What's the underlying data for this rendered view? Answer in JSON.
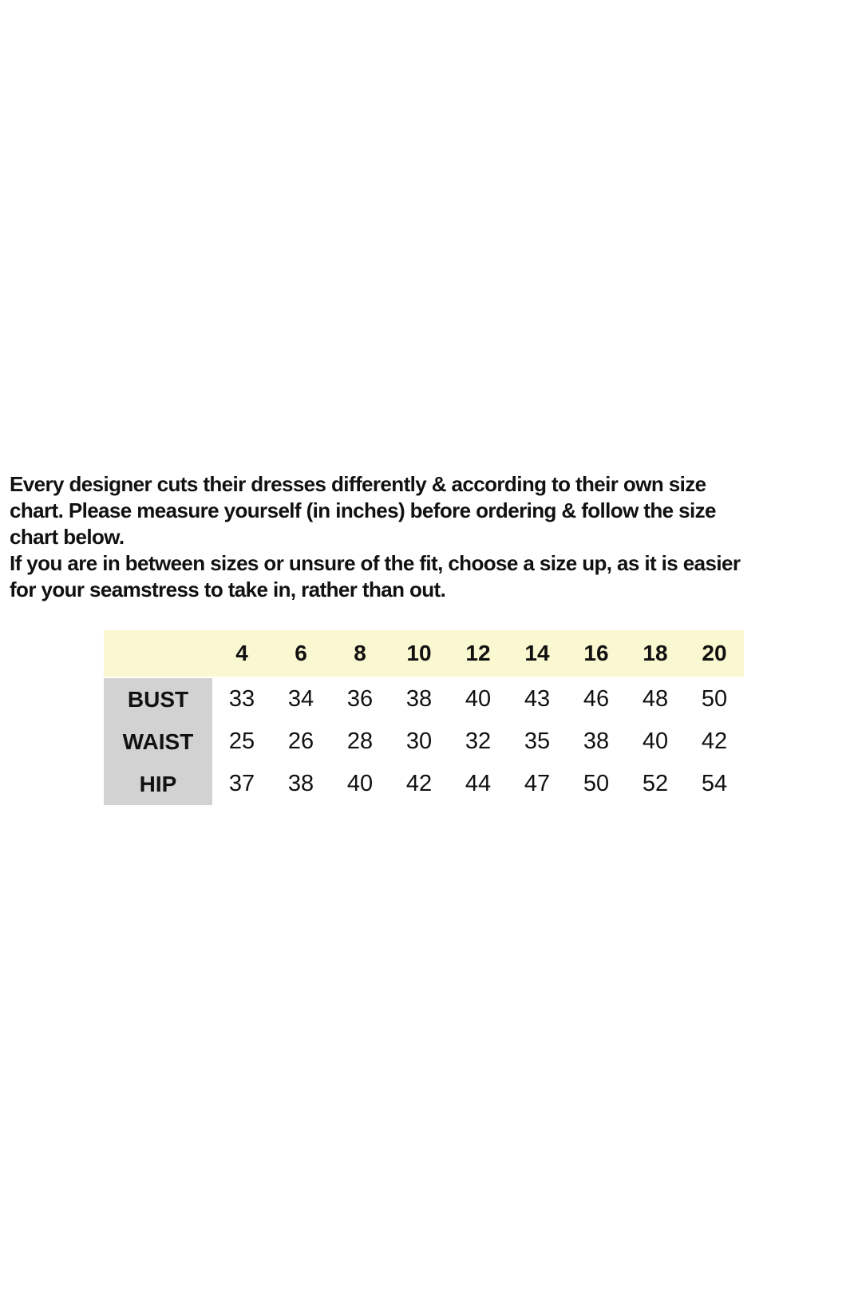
{
  "page": {
    "background": "#ffffff",
    "text_color": "#111111"
  },
  "intro": {
    "lines": [
      "Every designer cuts their dresses differently & according to their own size",
      "chart. Please measure yourself (in inches) before ordering & follow the size",
      "chart below.",
      "If you are in between sizes or unsure of the fit, choose a size up, as it is easier",
      "for your seamstress to take in, rather than out."
    ]
  },
  "size_chart": {
    "colors": {
      "header_bg": "#faf8d0",
      "label_bg": "#d2d2d2"
    },
    "sizes": [
      "4",
      "6",
      "8",
      "10",
      "12",
      "14",
      "16",
      "18",
      "20"
    ],
    "rows": [
      {
        "label": "BUST",
        "values": [
          "33",
          "34",
          "36",
          "38",
          "40",
          "43",
          "46",
          "48",
          "50"
        ]
      },
      {
        "label": "WAIST",
        "values": [
          "25",
          "26",
          "28",
          "30",
          "32",
          "35",
          "38",
          "40",
          "42"
        ]
      },
      {
        "label": "HIP",
        "values": [
          "37",
          "38",
          "40",
          "42",
          "44",
          "47",
          "50",
          "52",
          "54"
        ]
      }
    ]
  },
  "chart_data": {
    "type": "table",
    "column_headers": [
      4,
      6,
      8,
      10,
      12,
      14,
      16,
      18,
      20
    ],
    "row_headers": [
      "BUST",
      "WAIST",
      "HIP"
    ],
    "rows": [
      [
        33,
        34,
        36,
        38,
        40,
        43,
        46,
        48,
        50
      ],
      [
        25,
        26,
        28,
        30,
        32,
        35,
        38,
        40,
        42
      ],
      [
        37,
        38,
        40,
        42,
        44,
        47,
        50,
        52,
        54
      ]
    ],
    "units": "inches"
  }
}
